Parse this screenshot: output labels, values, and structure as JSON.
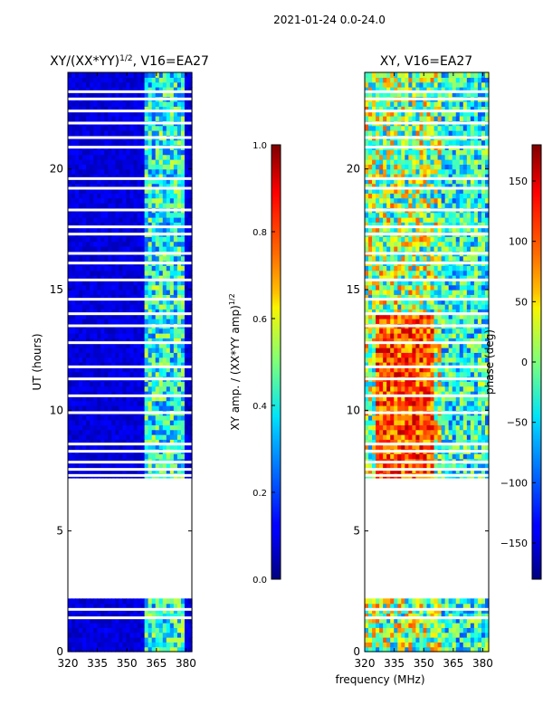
{
  "suptitle": "2021-01-24 0.0-24.0",
  "chart_data": [
    {
      "type": "heatmap",
      "title_main": "XY/(XX*YY)",
      "title_sup": "1/2",
      "title_rest": ", V16=EA27",
      "xlabel": "",
      "ylabel": "UT (hours)",
      "xlim": [
        320,
        383
      ],
      "ylim": [
        0,
        24
      ],
      "xticks": [
        320,
        335,
        350,
        365,
        380
      ],
      "yticks": [
        0,
        5,
        10,
        15,
        20
      ],
      "colorbar": {
        "label_main": "XY amp. / (XX*YY amp)",
        "label_sup": "1/2",
        "range": [
          0.0,
          1.0
        ],
        "ticks": [
          "0.0",
          "0.2",
          "0.4",
          "0.6",
          "0.8",
          "1.0"
        ],
        "colormap": "jet"
      },
      "data_gaps_hours": [
        [
          2.3,
          7.1
        ]
      ]
    },
    {
      "type": "heatmap",
      "title": "XY, V16=EA27",
      "xlabel": "frequency (MHz)",
      "ylabel": "",
      "xlim": [
        320,
        383
      ],
      "ylim": [
        0,
        24
      ],
      "xticks": [
        320,
        335,
        350,
        365,
        380
      ],
      "yticks": [
        0,
        5,
        10,
        15,
        20
      ],
      "colorbar": {
        "label": "phase (deg)",
        "range": [
          -180,
          180
        ],
        "ticks": [
          "150",
          "100",
          "50",
          "0",
          "−50",
          "−100",
          "−150"
        ],
        "colormap": "jet"
      },
      "data_gaps_hours": [
        [
          2.3,
          7.1
        ]
      ]
    }
  ]
}
